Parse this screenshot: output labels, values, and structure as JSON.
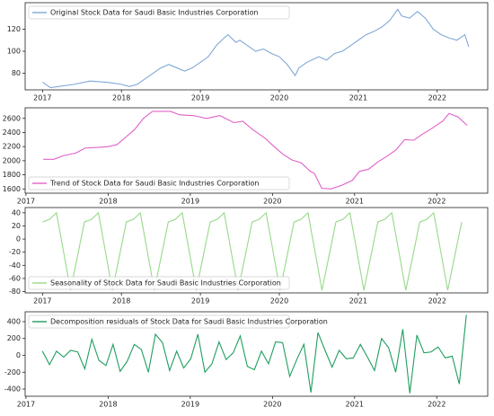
{
  "chart_data": [
    {
      "type": "line",
      "legend": "upper left",
      "xlim": [
        2016.78,
        2022.64
      ],
      "ylim": [
        65,
        144
      ],
      "xticks": [
        2017,
        2018,
        2019,
        2020,
        2021,
        2022
      ],
      "yticks": [
        80,
        100,
        120
      ],
      "x": [
        2017.0,
        2017.1,
        2017.2,
        2017.4,
        2017.6,
        2017.8,
        2018.0,
        2018.1,
        2018.2,
        2018.3,
        2018.4,
        2018.5,
        2018.6,
        2018.7,
        2018.8,
        2018.9,
        2019.0,
        2019.1,
        2019.2,
        2019.3,
        2019.35,
        2019.45,
        2019.5,
        2019.6,
        2019.7,
        2019.8,
        2019.9,
        2020.0,
        2020.1,
        2020.2,
        2020.25,
        2020.35,
        2020.5,
        2020.6,
        2020.7,
        2020.8,
        2020.9,
        2021.0,
        2021.1,
        2021.2,
        2021.3,
        2021.4,
        2021.5,
        2021.55,
        2021.65,
        2021.75,
        2021.85,
        2021.95,
        2022.05,
        2022.15,
        2022.25,
        2022.35,
        2022.4
      ],
      "series": [
        {
          "name": "Original Stock Data for Saudi Basic Industries Corporation",
          "color": "#7fa8d6",
          "values": [
            72,
            67,
            68,
            70,
            73,
            72,
            70,
            68,
            70,
            75,
            80,
            85,
            88,
            85,
            82,
            85,
            90,
            95,
            105,
            112,
            115,
            108,
            110,
            105,
            100,
            102,
            98,
            95,
            88,
            78,
            85,
            90,
            95,
            92,
            98,
            100,
            105,
            110,
            115,
            118,
            122,
            128,
            138,
            132,
            130,
            136,
            130,
            120,
            115,
            112,
            110,
            115,
            104
          ]
        }
      ]
    },
    {
      "type": "line",
      "legend": "lower left",
      "xlim": [
        2016.99,
        2022.62
      ],
      "ylim": [
        1540,
        2750
      ],
      "xticks": [
        2017,
        2018,
        2019,
        2020,
        2021,
        2022
      ],
      "yticks": [
        1600,
        1800,
        2000,
        2200,
        2400,
        2600
      ],
      "x": [
        2017.21,
        2017.34,
        2017.45,
        2017.61,
        2017.72,
        2017.89,
        2018.0,
        2018.11,
        2018.21,
        2018.32,
        2018.43,
        2018.54,
        2018.76,
        2018.87,
        2019.04,
        2019.2,
        2019.36,
        2019.53,
        2019.64,
        2019.75,
        2019.91,
        2020.02,
        2020.13,
        2020.24,
        2020.35,
        2020.46,
        2020.51,
        2020.6,
        2020.71,
        2020.84,
        2020.97,
        2021.06,
        2021.17,
        2021.28,
        2021.39,
        2021.5,
        2021.61,
        2021.72,
        2021.83,
        2021.93,
        2022.07,
        2022.15,
        2022.26,
        2022.37
      ],
      "series": [
        {
          "name": "Trend of Stock Data for Saudi Basic Industries Corporation",
          "color": "#e060c8",
          "values": [
            2020,
            2020,
            2070,
            2110,
            2180,
            2190,
            2200,
            2230,
            2330,
            2440,
            2600,
            2700,
            2700,
            2650,
            2640,
            2600,
            2640,
            2540,
            2560,
            2450,
            2320,
            2200,
            2090,
            2010,
            1970,
            1850,
            1820,
            1610,
            1600,
            1650,
            1720,
            1850,
            1880,
            1980,
            2060,
            2150,
            2300,
            2290,
            2380,
            2450,
            2560,
            2670,
            2620,
            2500
          ]
        }
      ]
    },
    {
      "type": "line",
      "legend": "lower left",
      "xlim": [
        2016.78,
        2022.64
      ],
      "ylim": [
        -82,
        48
      ],
      "xticks": [
        2017,
        2018,
        2019,
        2020,
        2021,
        2022
      ],
      "yticks": [
        -80,
        -60,
        -40,
        -20,
        0,
        20,
        40
      ],
      "x": [
        2017,
        2017.089,
        2017.177,
        2017.266,
        2017.354,
        2017.443,
        2017.531,
        2017.62,
        2017.708,
        2017.797,
        2017.885,
        2017.974,
        2018.062,
        2018.151,
        2018.239,
        2018.328,
        2018.416,
        2018.505,
        2018.593,
        2018.682,
        2018.77,
        2018.859,
        2018.947,
        2019.036,
        2019.124,
        2019.213,
        2019.301,
        2019.39,
        2019.478,
        2019.567,
        2019.655,
        2019.744,
        2019.832,
        2019.921,
        2020.009,
        2020.098,
        2020.186,
        2020.275,
        2020.363,
        2020.452,
        2020.54,
        2020.629,
        2020.717,
        2020.806,
        2020.894,
        2020.983,
        2021.071,
        2021.16,
        2021.248,
        2021.337,
        2021.425,
        2021.514,
        2021.602,
        2021.691,
        2021.779,
        2021.868,
        2021.956,
        2022.045,
        2022.133,
        2022.222,
        2022.31
      ],
      "series": [
        {
          "name": "Seasonality of Stock Data for Saudi Basic Industries Corporation",
          "color": "#98d88a",
          "values": [
            26,
            30,
            40,
            -19,
            -78,
            -26,
            26,
            30,
            40,
            -19,
            -78,
            -26,
            26,
            30,
            40,
            -19,
            -78,
            -26,
            26,
            30,
            40,
            -19,
            -78,
            -26,
            26,
            30,
            40,
            -19,
            -78,
            -26,
            26,
            30,
            40,
            -19,
            -78,
            -26,
            26,
            30,
            40,
            -19,
            -78,
            -26,
            26,
            30,
            40,
            -19,
            -78,
            -26,
            26,
            30,
            40,
            -19,
            -78,
            -26,
            26,
            30,
            40,
            -19,
            -78,
            -26,
            26
          ]
        }
      ]
    },
    {
      "type": "line",
      "legend": "upper left",
      "xlim": [
        2016.99,
        2022.62
      ],
      "ylim": [
        -485,
        517
      ],
      "xticks": [
        2017,
        2018,
        2019,
        2020,
        2021,
        2022
      ],
      "yticks": [
        -400,
        -200,
        0,
        200,
        400
      ],
      "x": [
        2017.2,
        2017.286,
        2017.372,
        2017.458,
        2017.544,
        2017.63,
        2017.716,
        2017.802,
        2017.888,
        2017.974,
        2018.06,
        2018.146,
        2018.232,
        2018.318,
        2018.404,
        2018.49,
        2018.576,
        2018.662,
        2018.748,
        2018.834,
        2018.92,
        2019.006,
        2019.092,
        2019.178,
        2019.264,
        2019.35,
        2019.436,
        2019.522,
        2019.608,
        2019.694,
        2019.78,
        2019.866,
        2019.952,
        2020.038,
        2020.124,
        2020.21,
        2020.296,
        2020.382,
        2020.468,
        2020.554,
        2020.64,
        2020.726,
        2020.812,
        2020.898,
        2020.984,
        2021.07,
        2021.156,
        2021.242,
        2021.328,
        2021.414,
        2021.5,
        2021.586,
        2021.672,
        2021.758,
        2021.844,
        2021.93,
        2022.016,
        2022.102,
        2022.188,
        2022.274,
        2022.36
      ],
      "series": [
        {
          "name": "Decomposition residuals of Stock Data for Saudi Basic Industries Corporation",
          "color": "#1e9e5e",
          "values": [
            50,
            -110,
            50,
            -20,
            60,
            40,
            -160,
            190,
            -60,
            -120,
            130,
            -190,
            -70,
            130,
            70,
            -200,
            250,
            150,
            -180,
            50,
            -150,
            -40,
            250,
            -200,
            -100,
            160,
            -50,
            30,
            230,
            -130,
            -170,
            50,
            -100,
            160,
            150,
            -250,
            -50,
            130,
            -440,
            270,
            60,
            -140,
            60,
            -40,
            -30,
            130,
            -20,
            -180,
            200,
            90,
            -200,
            310,
            -450,
            240,
            30,
            40,
            100,
            -30,
            -10,
            -340,
            480
          ]
        }
      ]
    }
  ]
}
